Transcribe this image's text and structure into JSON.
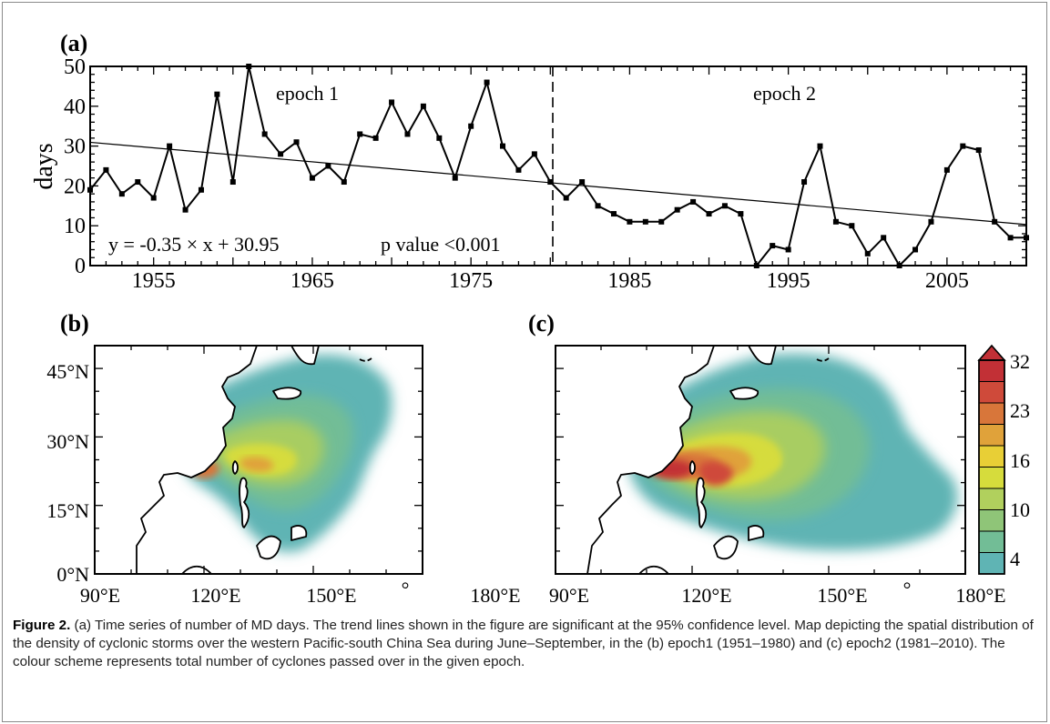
{
  "figure": {
    "panel_a_label": "(a)",
    "panel_b_label": "(b)",
    "panel_c_label": "(c)",
    "epoch1_label": "epoch 1",
    "epoch2_label": "epoch 2",
    "equation": "y = -0.35 × x + 30.95",
    "pvalue": "p value <0.001",
    "map_lat_labels": [
      "45°N",
      "30°N",
      "15°N",
      "0°N"
    ],
    "map_lon_labels": [
      "90°E",
      "120°E",
      "150°E",
      "180°E"
    ],
    "map_lon_stray_mark": "°",
    "colorbar_labels": [
      "32",
      "23",
      "16",
      "10",
      "4"
    ],
    "colorbar_colors": [
      "#5fb4b4",
      "#72bd96",
      "#8fc578",
      "#b1d05d",
      "#d6dc3c",
      "#e8cf36",
      "#e0a23a",
      "#d8763a",
      "#cf4a3a",
      "#c23036"
    ],
    "land_color": "#ffffff",
    "coast_color": "#000000"
  },
  "chart_data": {
    "type": "line",
    "ylabel": "days",
    "xlabel": "",
    "x": [
      1951,
      1952,
      1953,
      1954,
      1955,
      1956,
      1957,
      1958,
      1959,
      1960,
      1961,
      1962,
      1963,
      1964,
      1965,
      1966,
      1967,
      1968,
      1969,
      1970,
      1971,
      1972,
      1973,
      1974,
      1975,
      1976,
      1977,
      1978,
      1979,
      1980,
      1981,
      1982,
      1983,
      1984,
      1985,
      1986,
      1987,
      1988,
      1989,
      1990,
      1991,
      1992,
      1993,
      1994,
      1995,
      1996,
      1997,
      1998,
      1999,
      2000,
      2001,
      2002,
      2003,
      2004,
      2005,
      2006,
      2007,
      2008,
      2009,
      2010
    ],
    "values": [
      19,
      24,
      18,
      21,
      17,
      30,
      14,
      19,
      43,
      21,
      50,
      33,
      28,
      31,
      22,
      25,
      21,
      33,
      32,
      41,
      33,
      40,
      32,
      22,
      35,
      46,
      30,
      24,
      28,
      21,
      17,
      21,
      15,
      13,
      11,
      11,
      11,
      14,
      16,
      13,
      15,
      13,
      0,
      5,
      4,
      21,
      30,
      11,
      10,
      3,
      7,
      0,
      4,
      11,
      24,
      30,
      29,
      11,
      7,
      7
    ],
    "xlim": [
      1951,
      2010
    ],
    "ylim": [
      0,
      50
    ],
    "xticks": [
      "1955",
      "1965",
      "1975",
      "1985",
      "1995",
      "2005"
    ],
    "yticks": [
      "0",
      "10",
      "20",
      "30",
      "40",
      "50"
    ],
    "trend": {
      "slope": -0.35,
      "intercept": 30.95
    },
    "divider_year": 1980,
    "grid": false
  },
  "caption": {
    "label": "Figure 2.",
    "text": " (a) Time series of number of MD days. The trend lines shown in the figure are significant at the 95% confidence level. Map depicting the spatial distribution of the density of cyclonic storms over the western Pacific-south China Sea during June–September, in the (b) epoch1 (1951–1980) and (c) epoch2 (1981–2010). The colour scheme represents total number of cyclones passed over in the given epoch."
  }
}
